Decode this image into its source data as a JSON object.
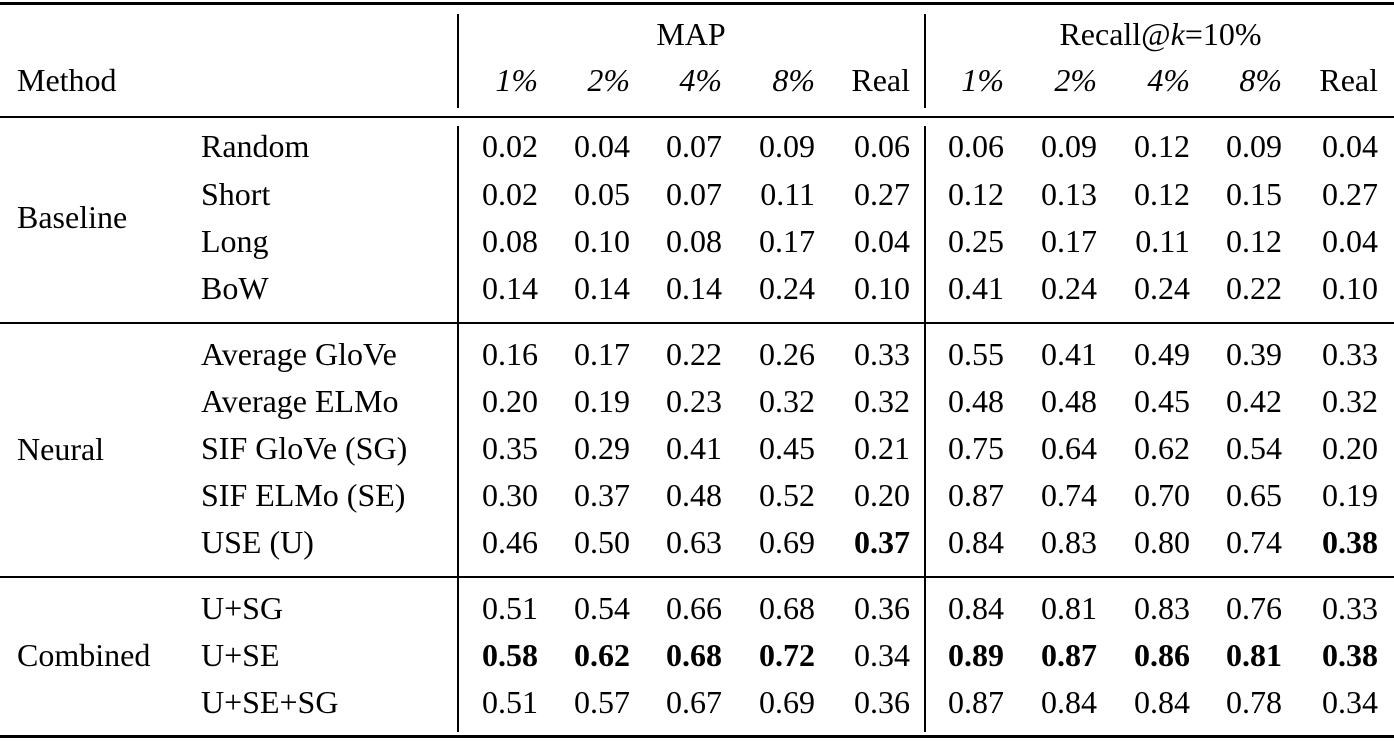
{
  "header": {
    "method": "Method",
    "map_group": "MAP",
    "recall_group": {
      "prefix": "Recall@",
      "k": "k",
      "suffix": "=10%"
    },
    "columns": [
      "1%",
      "2%",
      "4%",
      "8%",
      "Real"
    ]
  },
  "groups": [
    {
      "name": "Baseline",
      "rows": [
        {
          "method": "Random",
          "map": [
            "0.02",
            "0.04",
            "0.07",
            "0.09",
            "0.06"
          ],
          "recall": [
            "0.06",
            "0.09",
            "0.12",
            "0.09",
            "0.04"
          ]
        },
        {
          "method": "Short",
          "map": [
            "0.02",
            "0.05",
            "0.07",
            "0.11",
            "0.27"
          ],
          "recall": [
            "0.12",
            "0.13",
            "0.12",
            "0.15",
            "0.27"
          ]
        },
        {
          "method": "Long",
          "map": [
            "0.08",
            "0.10",
            "0.08",
            "0.17",
            "0.04"
          ],
          "recall": [
            "0.25",
            "0.17",
            "0.11",
            "0.12",
            "0.04"
          ]
        },
        {
          "method": "BoW",
          "map": [
            "0.14",
            "0.14",
            "0.14",
            "0.24",
            "0.10"
          ],
          "recall": [
            "0.41",
            "0.24",
            "0.24",
            "0.22",
            "0.10"
          ]
        }
      ]
    },
    {
      "name": "Neural",
      "rows": [
        {
          "method": "Average GloVe",
          "map": [
            "0.16",
            "0.17",
            "0.22",
            "0.26",
            "0.33"
          ],
          "recall": [
            "0.55",
            "0.41",
            "0.49",
            "0.39",
            "0.33"
          ]
        },
        {
          "method": "Average ELMo",
          "map": [
            "0.20",
            "0.19",
            "0.23",
            "0.32",
            "0.32"
          ],
          "recall": [
            "0.48",
            "0.48",
            "0.45",
            "0.42",
            "0.32"
          ]
        },
        {
          "method": "SIF GloVe (SG)",
          "map": [
            "0.35",
            "0.29",
            "0.41",
            "0.45",
            "0.21"
          ],
          "recall": [
            "0.75",
            "0.64",
            "0.62",
            "0.54",
            "0.20"
          ]
        },
        {
          "method": "SIF ELMo (SE)",
          "map": [
            "0.30",
            "0.37",
            "0.48",
            "0.52",
            "0.20"
          ],
          "recall": [
            "0.87",
            "0.74",
            "0.70",
            "0.65",
            "0.19"
          ]
        },
        {
          "method": "USE (U)",
          "map": [
            "0.46",
            "0.50",
            "0.63",
            "0.69",
            "0.37"
          ],
          "recall": [
            "0.84",
            "0.83",
            "0.80",
            "0.74",
            "0.38"
          ],
          "bold_map": [
            4
          ],
          "bold_recall": [
            4
          ]
        }
      ]
    },
    {
      "name": "Combined",
      "rows": [
        {
          "method": "U+SG",
          "map": [
            "0.51",
            "0.54",
            "0.66",
            "0.68",
            "0.36"
          ],
          "recall": [
            "0.84",
            "0.81",
            "0.83",
            "0.76",
            "0.33"
          ]
        },
        {
          "method": "U+SE",
          "map": [
            "0.58",
            "0.62",
            "0.68",
            "0.72",
            "0.34"
          ],
          "recall": [
            "0.89",
            "0.87",
            "0.86",
            "0.81",
            "0.38"
          ],
          "bold_map": [
            0,
            1,
            2,
            3
          ],
          "bold_recall": [
            0,
            1,
            2,
            3,
            4
          ]
        },
        {
          "method": "U+SE+SG",
          "map": [
            "0.51",
            "0.57",
            "0.67",
            "0.69",
            "0.36"
          ],
          "recall": [
            "0.87",
            "0.84",
            "0.84",
            "0.78",
            "0.34"
          ]
        }
      ]
    }
  ]
}
